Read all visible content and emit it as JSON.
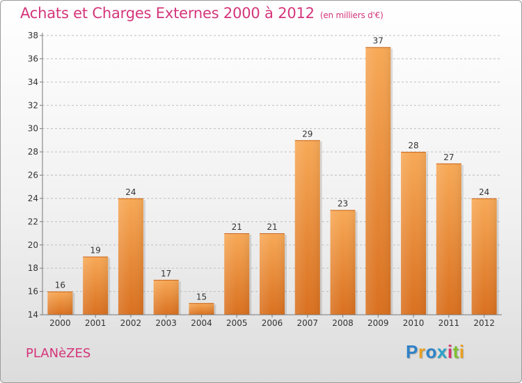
{
  "title": "Achats et Charges Externes 2000 à 2012",
  "unit": "(en milliers d'€)",
  "commune": "PLANèZES",
  "brand": {
    "text": "Proxiti",
    "letter_colors": [
      "#2f82c8",
      "#e8a020",
      "#2f82c8",
      "#2aa1c8",
      "#d6336c",
      "#7fbf2f",
      "#e8a020"
    ]
  },
  "colors": {
    "title": "#d4357a",
    "bar_top": "#f7a957",
    "bar_bottom": "#d9701f",
    "grid": "#bdbdbd",
    "axis": "#777777"
  },
  "chart_data": {
    "type": "bar",
    "categories": [
      "2000",
      "2001",
      "2002",
      "2003",
      "2004",
      "2005",
      "2006",
      "2007",
      "2008",
      "2009",
      "2010",
      "2011",
      "2012"
    ],
    "values": [
      16,
      19,
      24,
      17,
      15,
      21,
      21,
      29,
      23,
      37,
      28,
      27,
      24
    ],
    "ylim": [
      14,
      38
    ],
    "yticks": [
      14,
      16,
      18,
      20,
      22,
      24,
      26,
      28,
      30,
      32,
      34,
      36,
      38
    ],
    "grid": true,
    "xlabel": "",
    "ylabel": ""
  }
}
